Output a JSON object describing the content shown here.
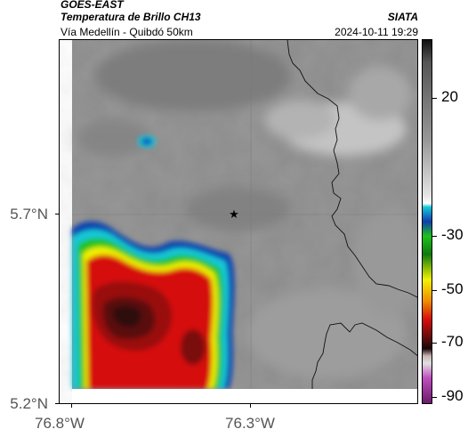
{
  "header": {
    "satellite": "GOES-EAST",
    "product": "Temperatura de Brillo CH13",
    "region": "Vía Medellín - Quibdó 50km",
    "organization": "SIATA",
    "timestamp": "2024-10-11 19:29"
  },
  "map": {
    "y_ticks": [
      "5.7°N",
      "5.2°N"
    ],
    "x_ticks": [
      "76.8°W",
      "76.3°W"
    ],
    "marker_icon": "star-icon"
  },
  "colorbar": {
    "ticks": [
      "20",
      "-30",
      "-50",
      "-70",
      "-90"
    ],
    "colors": {
      "cyan": "#16c8d8",
      "blue": "#0d3fb0",
      "green": "#1dc21d",
      "yellow": "#f2f200",
      "red": "#d60c0c",
      "dark_red": "#4a0c0c",
      "magenta": "#c050c0"
    }
  }
}
